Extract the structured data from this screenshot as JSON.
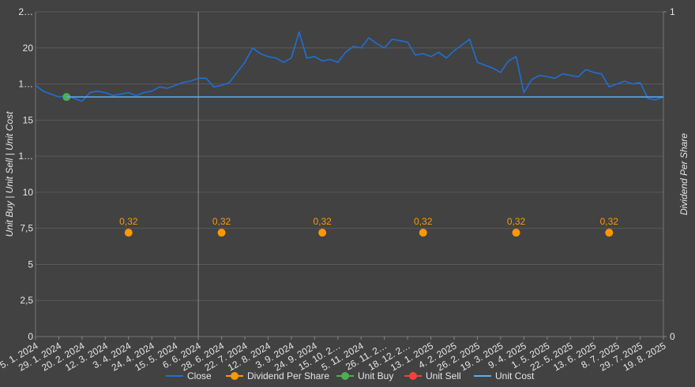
{
  "chart_data": {
    "type": "line",
    "y_label": "Unit Buy | Unit Sell | Unit Cost",
    "y2_label": "Dividend Per Share",
    "categories": [
      "5. 1. 2024",
      null,
      null,
      "29. 1. 2024",
      null,
      null,
      "20. 2. 2024",
      null,
      null,
      "12. 3. 2024",
      null,
      null,
      "3. 4. 2024",
      null,
      null,
      "24. 4. 2024",
      null,
      null,
      "15. 5. 2024",
      null,
      null,
      "6. 6. 2024",
      null,
      null,
      "28. 6. 2024",
      null,
      null,
      "22. 7. 2024",
      null,
      null,
      "12. 8. 2024",
      null,
      null,
      "3. 9. 2024",
      null,
      null,
      "24. 9. 2024",
      null,
      null,
      "15. 10. 2…",
      null,
      null,
      "5. 11. 2024",
      null,
      null,
      "26. 11. 2…",
      null,
      null,
      "18. 12. 2…",
      null,
      null,
      "13. 1. 2025",
      null,
      null,
      "4. 2. 2025",
      null,
      null,
      "26. 2. 2025",
      null,
      null,
      "19. 3. 2025",
      null,
      null,
      "9. 4. 2025",
      null,
      null,
      "1. 5. 2025",
      null,
      null,
      "22. 5. 2025",
      null,
      null,
      "13. 6. 2025",
      null,
      null,
      "8. 7. 2025",
      null,
      null,
      "29. 7. 2025",
      null,
      null,
      "19. 8. 2025"
    ],
    "series": [
      {
        "name": "Close",
        "color": "#1f6fd6",
        "values": [
          17.4,
          17.0,
          16.8,
          16.6,
          16.7,
          16.5,
          16.3,
          16.9,
          17.0,
          16.9,
          16.7,
          16.8,
          16.9,
          16.7,
          16.9,
          17.0,
          17.3,
          17.2,
          17.4,
          17.6,
          17.7,
          17.9,
          17.9,
          17.3,
          17.4,
          17.6,
          18.3,
          19.0,
          20.0,
          19.6,
          19.4,
          19.3,
          19.0,
          19.3,
          21.1,
          19.3,
          19.4,
          19.1,
          19.2,
          19.0,
          19.7,
          20.1,
          20.0,
          20.7,
          20.3,
          20.0,
          20.6,
          20.5,
          20.4,
          19.5,
          19.6,
          19.4,
          19.7,
          19.3,
          19.8,
          20.2,
          20.6,
          19.0,
          18.8,
          18.6,
          18.3,
          19.1,
          19.4,
          16.9,
          17.8,
          18.1,
          18.0,
          17.9,
          18.2,
          18.1,
          18.0,
          18.5,
          18.3,
          18.2,
          17.3,
          17.5,
          17.7,
          17.5,
          17.6,
          16.5,
          16.4,
          16.6
        ]
      },
      {
        "name": "Dividend Per Share",
        "color": "#ff9800",
        "axis": "y2",
        "markers": true,
        "values": [
          null,
          null,
          null,
          null,
          null,
          null,
          null,
          null,
          null,
          null,
          null,
          null,
          0.32,
          null,
          null,
          null,
          null,
          null,
          null,
          null,
          null,
          null,
          null,
          null,
          0.32,
          null,
          null,
          null,
          null,
          null,
          null,
          null,
          null,
          null,
          null,
          null,
          null,
          0.32,
          null,
          null,
          null,
          null,
          null,
          null,
          null,
          null,
          null,
          null,
          null,
          null,
          0.32,
          null,
          null,
          null,
          null,
          null,
          null,
          null,
          null,
          null,
          null,
          null,
          0.32,
          null,
          null,
          null,
          null,
          null,
          null,
          null,
          null,
          null,
          null,
          null,
          0.32,
          null,
          null,
          null,
          null,
          null,
          null,
          null
        ],
        "value_labels": [
          null,
          null,
          null,
          null,
          null,
          null,
          null,
          null,
          null,
          null,
          null,
          null,
          "0,32",
          null,
          null,
          null,
          null,
          null,
          null,
          null,
          null,
          null,
          null,
          null,
          "0,32",
          null,
          null,
          null,
          null,
          null,
          null,
          null,
          null,
          null,
          null,
          null,
          null,
          "0,32",
          null,
          null,
          null,
          null,
          null,
          null,
          null,
          null,
          null,
          null,
          null,
          null,
          "0,32",
          null,
          null,
          null,
          null,
          null,
          null,
          null,
          null,
          null,
          null,
          null,
          "0,32",
          null,
          null,
          null,
          null,
          null,
          null,
          null,
          null,
          null,
          null,
          null,
          "0,32",
          null,
          null,
          null,
          null,
          null,
          null,
          null
        ]
      },
      {
        "name": "Unit Buy",
        "color": "#4caf50",
        "markers": true,
        "values": [
          null,
          null,
          null,
          null,
          16.6,
          null,
          null,
          null,
          null,
          null,
          null,
          null,
          null,
          null,
          null,
          null,
          null,
          null,
          null,
          null,
          null,
          null,
          null,
          null,
          null,
          null,
          null,
          null,
          null,
          null,
          null,
          null,
          null,
          null,
          null,
          null,
          null,
          null,
          null,
          null,
          null,
          null,
          null,
          null,
          null,
          null,
          null,
          null,
          null,
          null,
          null,
          null,
          null,
          null,
          null,
          null,
          null,
          null,
          null,
          null,
          null,
          null,
          null,
          null,
          null,
          null,
          null,
          null,
          null,
          null,
          null,
          null,
          null,
          null,
          null,
          null,
          null,
          null,
          null,
          null,
          null,
          null
        ]
      },
      {
        "name": "Unit Sell",
        "color": "#f44336",
        "markers": true,
        "values": [
          null,
          null,
          null,
          null,
          null,
          null,
          null,
          null,
          null,
          null,
          null,
          null,
          null,
          null,
          null,
          null,
          null,
          null,
          null,
          null,
          null,
          null,
          null,
          null,
          null,
          null,
          null,
          null,
          null,
          null,
          null,
          null,
          null,
          null,
          null,
          null,
          null,
          null,
          null,
          null,
          null,
          null,
          null,
          null,
          null,
          null,
          null,
          null,
          null,
          null,
          null,
          null,
          null,
          null,
          null,
          null,
          null,
          null,
          null,
          null,
          null,
          null,
          null,
          null,
          null,
          null,
          null,
          null,
          null,
          null,
          null,
          null,
          null,
          null,
          null,
          null,
          null,
          null,
          null,
          null,
          null,
          null
        ]
      },
      {
        "name": "Unit Cost",
        "color": "#5aaef5",
        "values": [
          null,
          null,
          null,
          null,
          16.6,
          16.6,
          16.6,
          16.6,
          16.6,
          16.6,
          16.6,
          16.6,
          16.6,
          16.6,
          16.6,
          16.6,
          16.6,
          16.6,
          16.6,
          16.6,
          16.6,
          16.6,
          16.6,
          16.6,
          16.6,
          16.6,
          16.6,
          16.6,
          16.6,
          16.6,
          16.6,
          16.6,
          16.6,
          16.6,
          16.6,
          16.6,
          16.6,
          16.6,
          16.6,
          16.6,
          16.6,
          16.6,
          16.6,
          16.6,
          16.6,
          16.6,
          16.6,
          16.6,
          16.6,
          16.6,
          16.6,
          16.6,
          16.6,
          16.6,
          16.6,
          16.6,
          16.6,
          16.6,
          16.6,
          16.6,
          16.6,
          16.6,
          16.6,
          16.6,
          16.6,
          16.6,
          16.6,
          16.6,
          16.6,
          16.6,
          16.6,
          16.6,
          16.6,
          16.6,
          16.6,
          16.6,
          16.6,
          16.6,
          16.6,
          16.6,
          16.6,
          16.6
        ]
      }
    ],
    "ylim": [
      0,
      22.5
    ],
    "yticks": [
      0,
      {
        "value": 2.5,
        "label": "2,5"
      },
      5,
      {
        "value": 7.5,
        "label": "7,5"
      },
      10,
      {
        "value": 12.5,
        "label": "1…"
      },
      15,
      {
        "value": 17.5,
        "label": "1…"
      },
      20,
      {
        "value": 22.5,
        "label": "2…"
      }
    ],
    "y2lim": [
      0,
      1
    ],
    "y2ticks": [
      0,
      1
    ],
    "grid": true
  }
}
